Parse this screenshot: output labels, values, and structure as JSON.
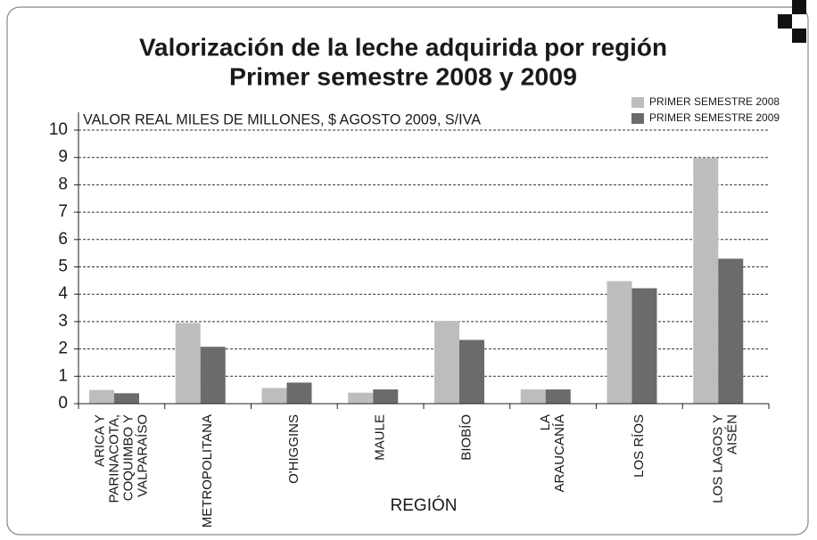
{
  "chart_data": {
    "type": "bar",
    "title": "Valorización de la leche adquirida por región",
    "subtitle": "Primer semestre 2008 y 2009",
    "y_axis_label": "VALOR REAL  MILES DE MILLONES, $ AGOSTO 2009, S/IVA",
    "x_axis_label": "REGIÓN",
    "categories": [
      "ARICA Y PARINACOTA, COQUIMBO Y VALPARAÍSO",
      "METROPOLITANA",
      "O'HIGGINS",
      "MAULE",
      "BIOBÍO",
      "LA ARAUCANÍA",
      "LOS RÍOS",
      "LOS LAGOS Y AISÉN"
    ],
    "series": [
      {
        "name": "PRIMER SEMESTRE 2008",
        "color": "#bdbdbd",
        "values": [
          0.5,
          2.95,
          0.57,
          0.4,
          3.02,
          0.52,
          4.48,
          8.98
        ]
      },
      {
        "name": "PRIMER SEMESTRE 2009",
        "color": "#6b6b6b",
        "values": [
          0.38,
          2.08,
          0.77,
          0.52,
          2.33,
          0.52,
          4.22,
          5.3
        ]
      }
    ],
    "ylim": [
      0,
      10
    ],
    "yticks": [
      0,
      1,
      2,
      3,
      4,
      5,
      6,
      7,
      8,
      9,
      10
    ],
    "grid": true,
    "legend": "top-right"
  }
}
